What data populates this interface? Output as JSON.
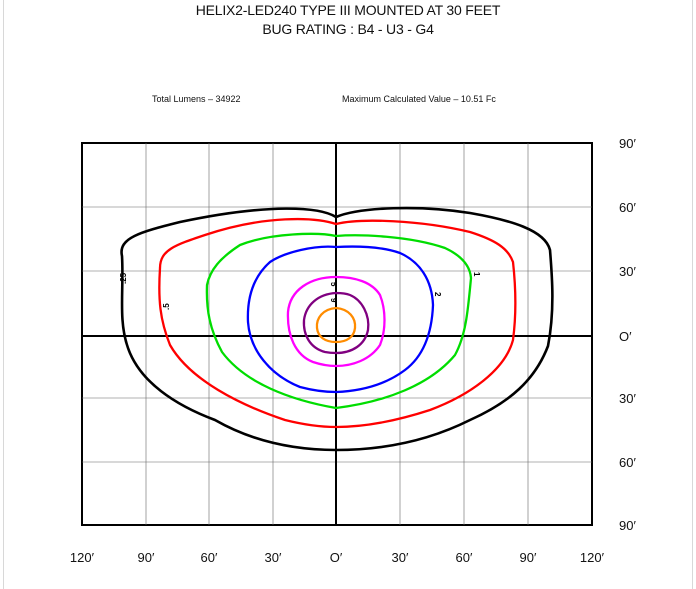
{
  "header": {
    "title": "HELIX2-LED240 TYPE III   MOUNTED AT 30 FEET",
    "subtitle": "BUG RATING : B4 - U3 - G4"
  },
  "stats": {
    "total_lumens": "Total Lumens – 34922",
    "max_value": "Maximum Calculated Value – 10.51 Fc"
  },
  "axes": {
    "x_ticks": [
      "120′",
      "90′",
      "60′",
      "30′",
      "O′",
      "30′",
      "60′",
      "90′",
      "120′"
    ],
    "y_ticks": [
      "90′",
      "60′",
      "30′",
      "O′",
      "30′",
      "60′",
      "90′"
    ]
  },
  "contours": [
    {
      "label": ".25",
      "color": "#000000"
    },
    {
      "label": ".5",
      "color": "#ff0000"
    },
    {
      "label": "1",
      "color": "#00dd00"
    },
    {
      "label": "2",
      "color": "#0000ff"
    },
    {
      "label": "5",
      "color": "#ff00ff"
    },
    {
      "label": "9",
      "color": "#800080"
    },
    {
      "label": "",
      "color": "#ff8c00"
    }
  ]
}
